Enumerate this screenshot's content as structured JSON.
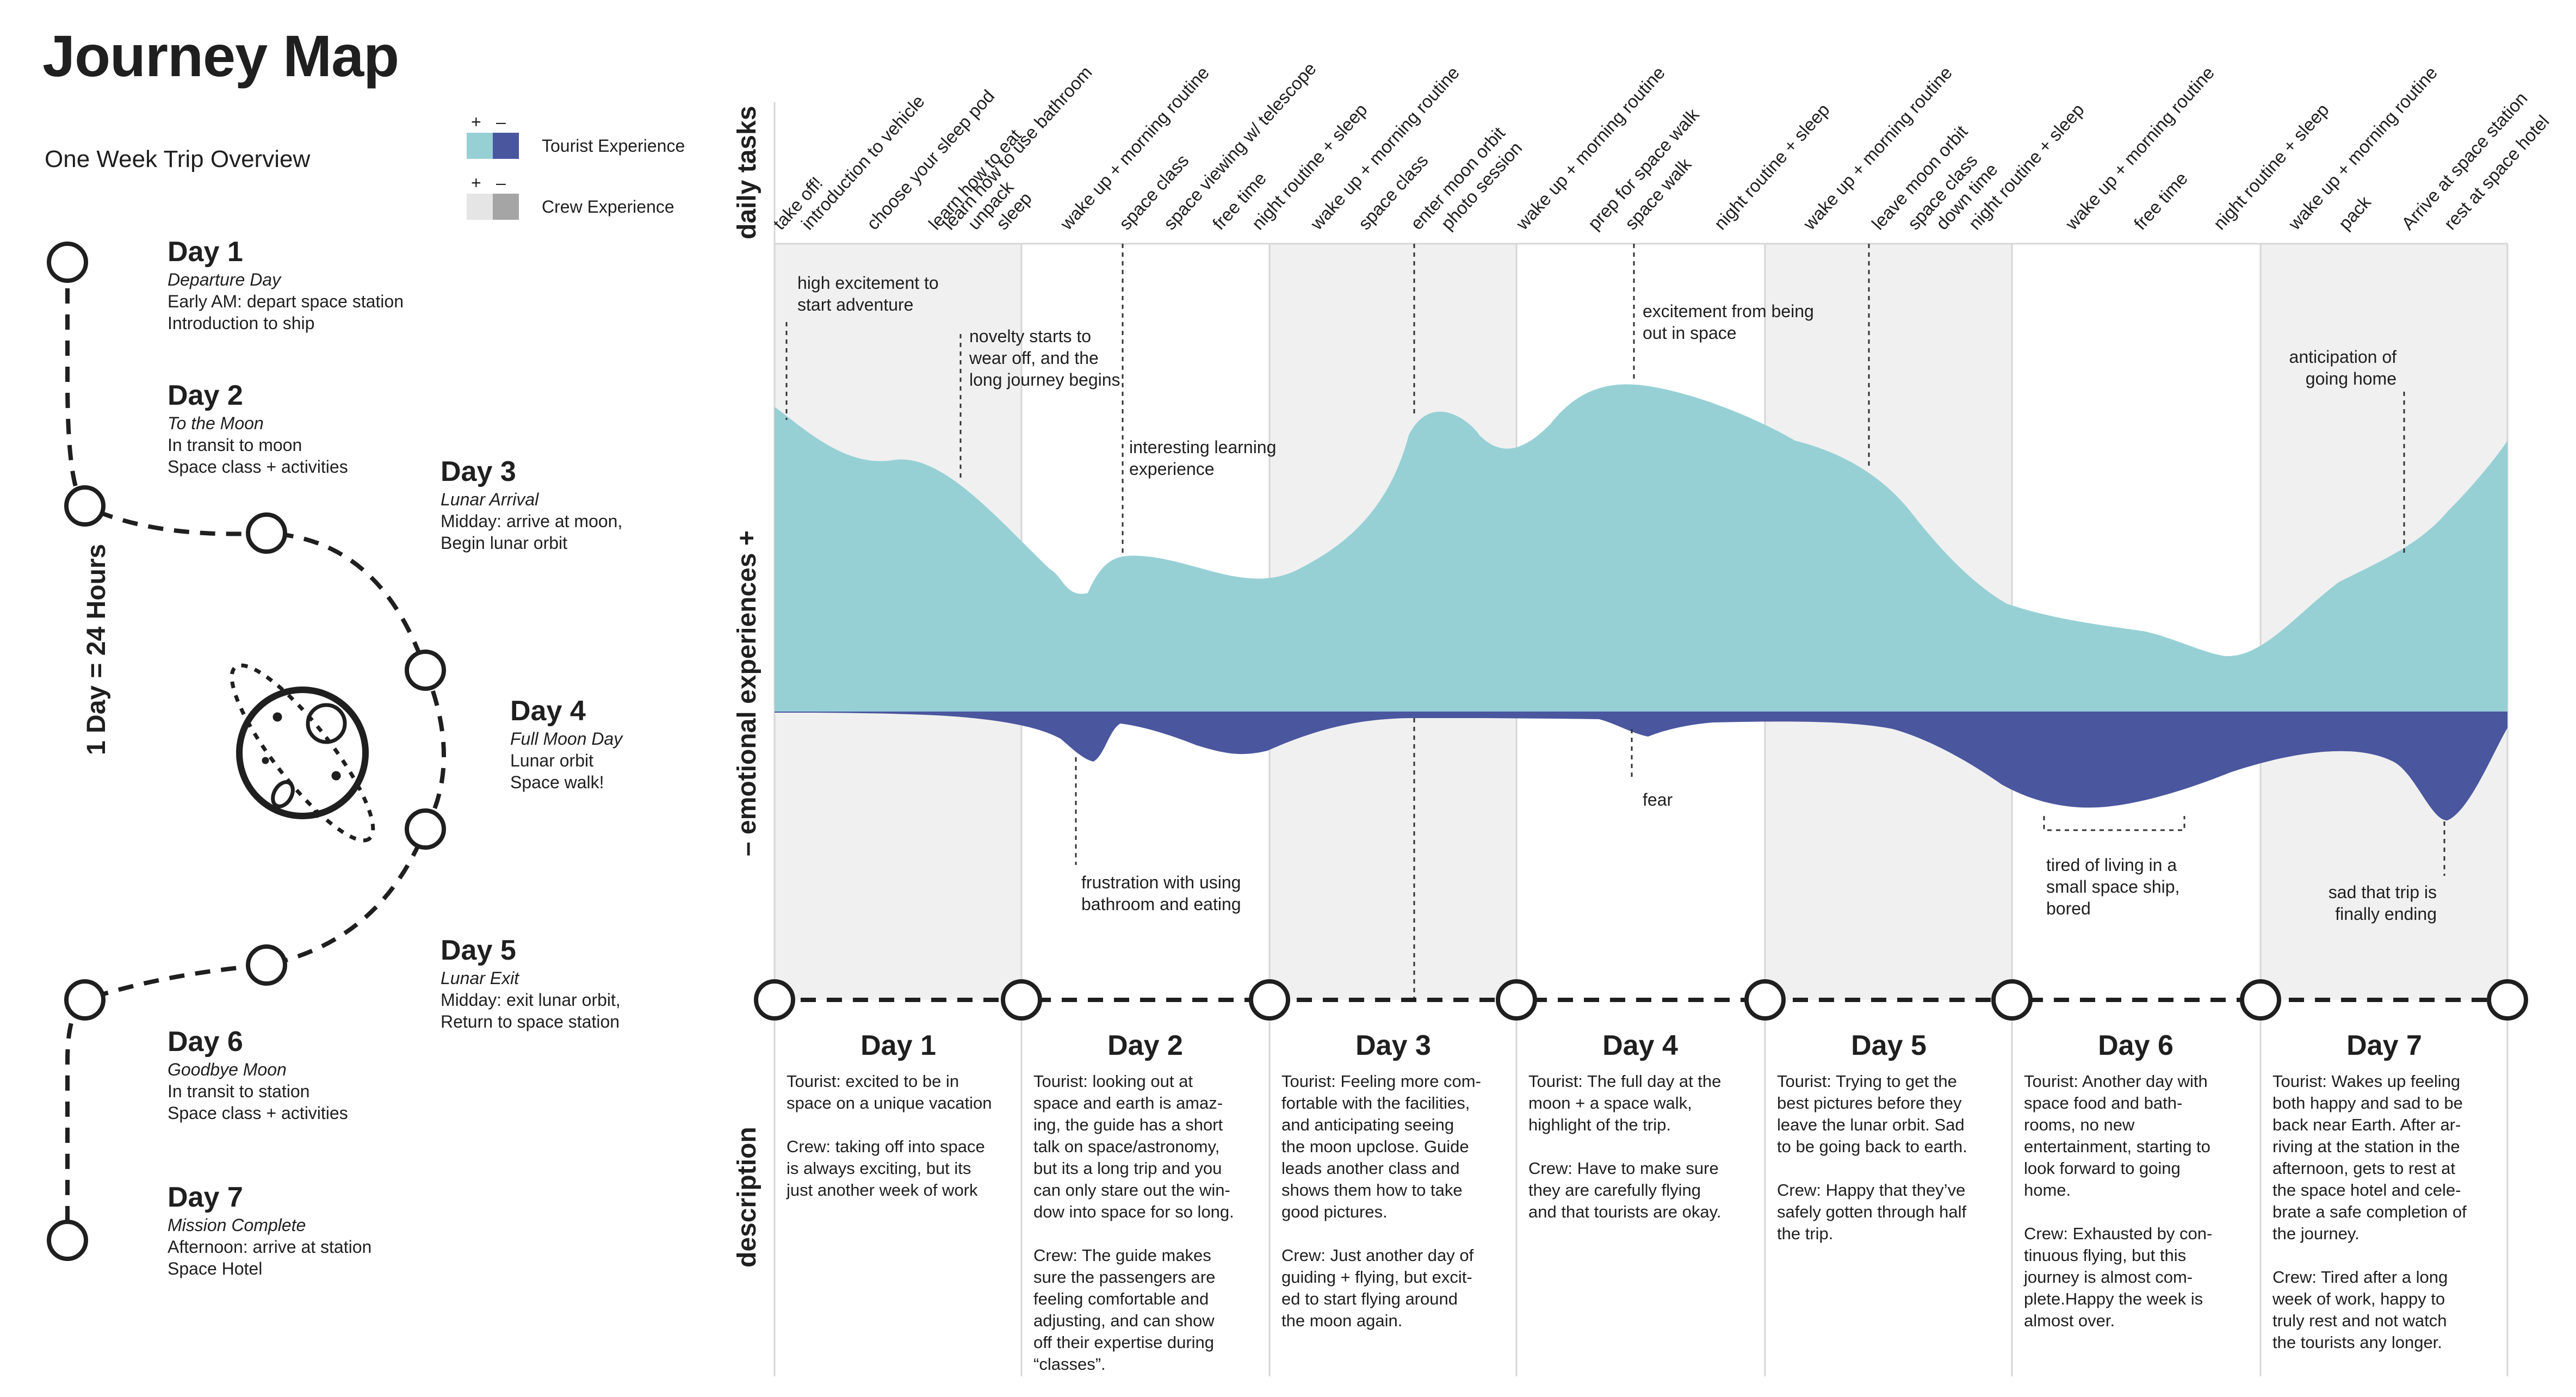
{
  "title": "Journey Map",
  "subtitle": "One Week Trip Overview",
  "legend": {
    "plus": "+",
    "minus": "–",
    "tourist": {
      "label": "Tourist Experience",
      "light": "#96D0D5",
      "dark": "#4A569E"
    },
    "crew": {
      "label": "Crew Experience",
      "light": "#E5E5E5",
      "dark": "#A5A5A5"
    }
  },
  "scale_label": "1 Day = 24 Hours",
  "timeline_days": [
    {
      "name": "Day 1",
      "sub": "Departure Day",
      "lines": [
        "Early AM: depart space station",
        "Introduction to ship"
      ]
    },
    {
      "name": "Day 2",
      "sub": "To the Moon",
      "lines": [
        "In transit to moon",
        "Space class + activities"
      ]
    },
    {
      "name": "Day 3",
      "sub": "Lunar Arrival",
      "lines": [
        "Midday: arrive at moon,",
        "Begin lunar orbit"
      ]
    },
    {
      "name": "Day 4",
      "sub": "Full Moon Day",
      "lines": [
        "Lunar orbit",
        "Space walk!"
      ]
    },
    {
      "name": "Day 5",
      "sub": "Lunar Exit",
      "lines": [
        "Midday: exit lunar orbit,",
        "Return to space station"
      ]
    },
    {
      "name": "Day 6",
      "sub": "Goodbye Moon",
      "lines": [
        "In transit to station",
        "Space class + activities"
      ]
    },
    {
      "name": "Day 7",
      "sub": "Mission Complete",
      "lines": [
        "Afternoon: arrive at station",
        "Space Hotel"
      ]
    }
  ],
  "axis_labels": {
    "daily_tasks": "daily tasks",
    "emotional": "– emotional experiences +",
    "description": "description"
  },
  "tasks": [
    "take off!",
    "introduction to vehicle",
    "choose your sleep pod",
    "learn how to eat",
    "learn how to use bathroom",
    "unpack",
    "sleep",
    "wake up + morning routine",
    "space class",
    "space viewing w/ telescope",
    "free time",
    "night routine + sleep",
    "wake up + morning routine",
    "space class",
    "enter moon orbit",
    "photo session",
    "wake up + morning routine",
    "prep for space walk",
    "space walk",
    "night routine + sleep",
    "wake up + morning routine",
    "leave moon orbit",
    "space class",
    "down time",
    "night routine + sleep",
    "wake up + morning routine",
    "free time",
    "night routine + sleep",
    "wake up + morning routine",
    "pack",
    "Arrive at space station",
    "rest at space hotel"
  ],
  "annotations": {
    "a1": [
      "high excitement to",
      "start adventure"
    ],
    "a2": [
      "novelty starts to",
      "wear off, and the",
      "long journey begins"
    ],
    "a3": [
      "interesting learning",
      "experience"
    ],
    "a4": [
      "excitement from being",
      "out in space"
    ],
    "a5": [
      "anticipation of",
      "going home"
    ],
    "a6": [
      "frustration with using",
      "bathroom and eating"
    ],
    "a7": [
      "fear"
    ],
    "a8": [
      "tired of living in a",
      "small space ship,",
      "bored"
    ],
    "a9": [
      "sad that trip is",
      "finally ending"
    ]
  },
  "description_days": [
    {
      "name": "Day 1",
      "paras": [
        [
          "Tourist: excited to be in",
          "space on a unique vacation"
        ],
        [
          "Crew: taking off into space",
          "is always exciting, but its",
          "just another week of work"
        ]
      ]
    },
    {
      "name": "Day 2",
      "paras": [
        [
          "Tourist: looking out at",
          "space and earth is amaz-",
          "ing, the guide has a short",
          "talk on space/astronomy,",
          "but its a long trip and you",
          "can only stare out the win-",
          "dow into space for so long."
        ],
        [
          "Crew: The guide makes",
          "sure the passengers are",
          "feeling comfortable and",
          "adjusting, and can show",
          "off their expertise during",
          "“classes”."
        ]
      ]
    },
    {
      "name": "Day 3",
      "paras": [
        [
          "Tourist: Feeling more com-",
          "fortable with the facilities,",
          "and anticipating seeing",
          "the moon upclose. Guide",
          "leads another class and",
          "shows them how to take",
          "good pictures."
        ],
        [
          "Crew: Just another day of",
          "guiding + flying, but excit-",
          "ed to start flying around",
          "the moon again."
        ]
      ]
    },
    {
      "name": "Day 4",
      "paras": [
        [
          "Tourist: The full day at the",
          "moon + a space walk,",
          "highlight of the trip."
        ],
        [
          "Crew: Have to make sure",
          "they are carefully flying",
          "and that tourists are okay."
        ]
      ]
    },
    {
      "name": "Day 5",
      "paras": [
        [
          "Tourist: Trying to get the",
          "best pictures before they",
          "leave the lunar orbit. Sad",
          "to be going back to earth."
        ],
        [
          "Crew: Happy that they’ve",
          "safely gotten through half",
          "the trip."
        ]
      ]
    },
    {
      "name": "Day 6",
      "paras": [
        [
          "Tourist: Another day with",
          "space food and bath-",
          "rooms, no new",
          "entertainment, starting to",
          "look forward to going",
          "home."
        ],
        [
          "Crew: Exhausted by con-",
          "tinuous flying, but this",
          "journey is almost com-",
          "plete.Happy the week is",
          "almost over."
        ]
      ]
    },
    {
      "name": "Day 7",
      "paras": [
        [
          "Tourist: Wakes up feeling",
          "both happy and sad to be",
          "back near Earth. After ar-",
          "riving at the station in the",
          "afternoon, gets to rest at",
          "the space hotel and cele-",
          "brate a safe completion of",
          "the journey."
        ],
        [
          "Crew: Tired after a long",
          "week of work, happy to",
          "truly rest and not watch",
          "the tourists any longer."
        ]
      ]
    }
  ]
}
